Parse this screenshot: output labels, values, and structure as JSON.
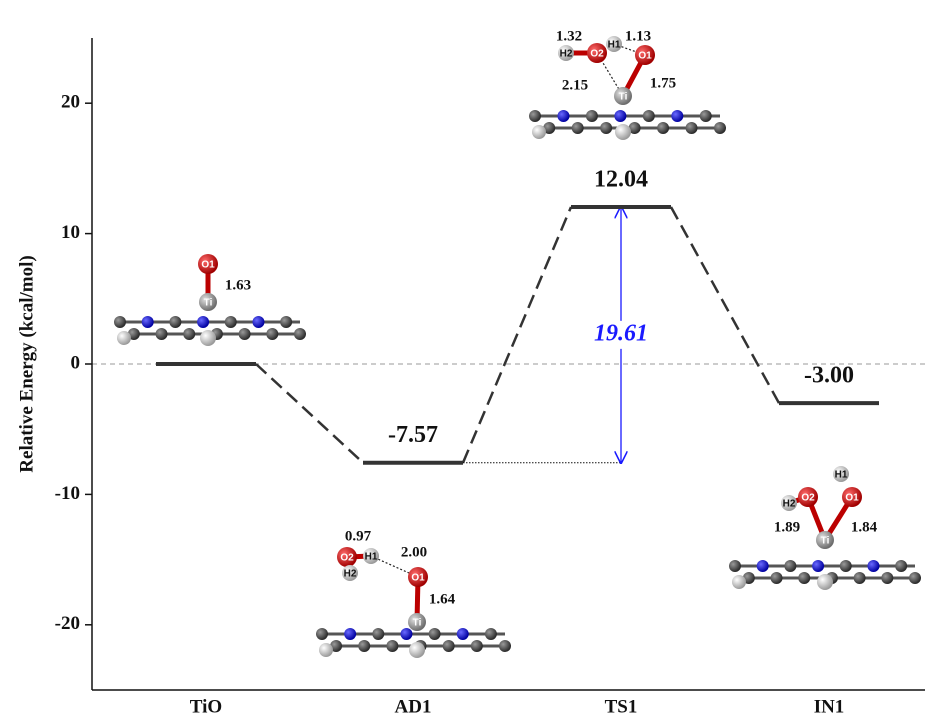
{
  "chart_data": {
    "type": "energy_profile",
    "y_label": "Relative Energy (kcal/mol)",
    "categories": [
      "TiO",
      "AD1",
      "TS1",
      "IN1"
    ],
    "values": [
      0,
      -7.57,
      12.04,
      -3.0
    ],
    "value_labels": [
      null,
      "-7.57",
      "12.04",
      "-3.00"
    ],
    "barrier": 19.61,
    "ylim": [
      -25,
      25
    ],
    "yticks": [
      -20,
      -10,
      0,
      10,
      20
    ],
    "color": "#333333",
    "barrier_color": "#1a1aff",
    "structures": [
      {
        "atoms": [
          "O1",
          "Ti"
        ],
        "bonds": [
          "1.63"
        ]
      },
      {
        "atoms": [
          "O1",
          "Ti",
          "O2",
          "H1",
          "H2"
        ],
        "bonds": [
          "0.97",
          "2.00",
          "1.64"
        ]
      },
      {
        "atoms": [
          "O1",
          "Ti",
          "O2",
          "H1",
          "H2"
        ],
        "bonds": [
          "1.32",
          "1.13",
          "2.15",
          "1.75"
        ]
      },
      {
        "atoms": [
          "O1",
          "Ti",
          "O2",
          "H1",
          "H2"
        ],
        "bonds": [
          "1.89",
          "1.84"
        ]
      }
    ]
  }
}
